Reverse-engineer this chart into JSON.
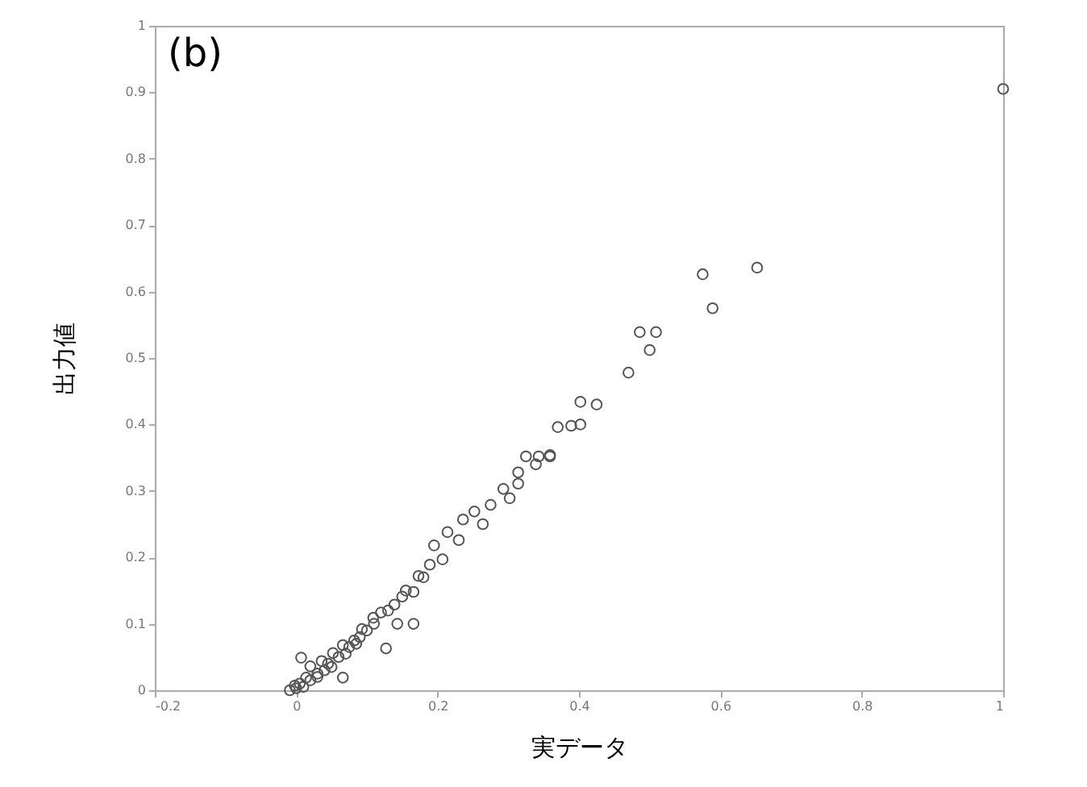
{
  "chart_data": {
    "type": "scatter",
    "xlabel": "実データ",
    "ylabel": "出力値",
    "annotations": [
      "(b)"
    ],
    "xlim": [
      -0.2,
      1
    ],
    "xticks": [
      -0.2,
      0,
      0.2,
      0.4,
      0.6,
      0.8,
      1
    ],
    "ylim": [
      0,
      1
    ],
    "yticks": [
      0,
      0.1,
      0.2,
      0.3,
      0.4,
      0.5,
      0.6,
      0.7,
      0.8,
      0.9,
      1
    ],
    "grid": false,
    "marker": "circle",
    "series": [
      {
        "color": "#555555",
        "x": [
          1.0,
          0.575,
          0.652,
          0.589,
          0.509,
          0.486,
          0.5,
          0.47,
          0.402,
          0.425,
          0.37,
          0.402,
          0.389,
          0.359,
          0.325,
          0.343,
          0.359,
          0.339,
          0.314,
          0.314,
          0.293,
          0.302,
          0.275,
          0.264,
          0.252,
          0.236,
          0.214,
          0.23,
          0.195,
          0.207,
          0.189,
          0.173,
          0.166,
          0.15,
          0.139,
          0.12,
          0.109,
          0.166,
          0.143,
          0.127,
          0.093,
          0.082,
          0.066,
          0.066,
          0.052,
          0.036,
          0.02,
          0.007,
          0.014,
          -0.002,
          -0.009,
          0.03,
          0.045,
          0.06,
          0.075,
          0.09,
          0.1,
          0.11,
          0.13,
          0.155,
          0.18,
          0.005,
          0.01,
          0.02,
          0.03,
          0.04,
          0.05,
          0.07,
          0.085,
          0.0
        ],
        "values": [
          0.905,
          0.626,
          0.636,
          0.575,
          0.539,
          0.539,
          0.512,
          0.478,
          0.434,
          0.43,
          0.396,
          0.4,
          0.398,
          0.354,
          0.352,
          0.352,
          0.352,
          0.34,
          0.328,
          0.311,
          0.303,
          0.289,
          0.279,
          0.25,
          0.269,
          0.257,
          0.238,
          0.226,
          0.218,
          0.197,
          0.189,
          0.172,
          0.148,
          0.141,
          0.129,
          0.117,
          0.109,
          0.1,
          0.1,
          0.063,
          0.092,
          0.075,
          0.068,
          0.019,
          0.056,
          0.044,
          0.036,
          0.049,
          0.019,
          0.007,
          0.0,
          0.025,
          0.04,
          0.05,
          0.065,
          0.08,
          0.09,
          0.1,
          0.12,
          0.15,
          0.17,
          0.01,
          0.005,
          0.015,
          0.02,
          0.03,
          0.035,
          0.055,
          0.07,
          0.003
        ]
      }
    ]
  }
}
